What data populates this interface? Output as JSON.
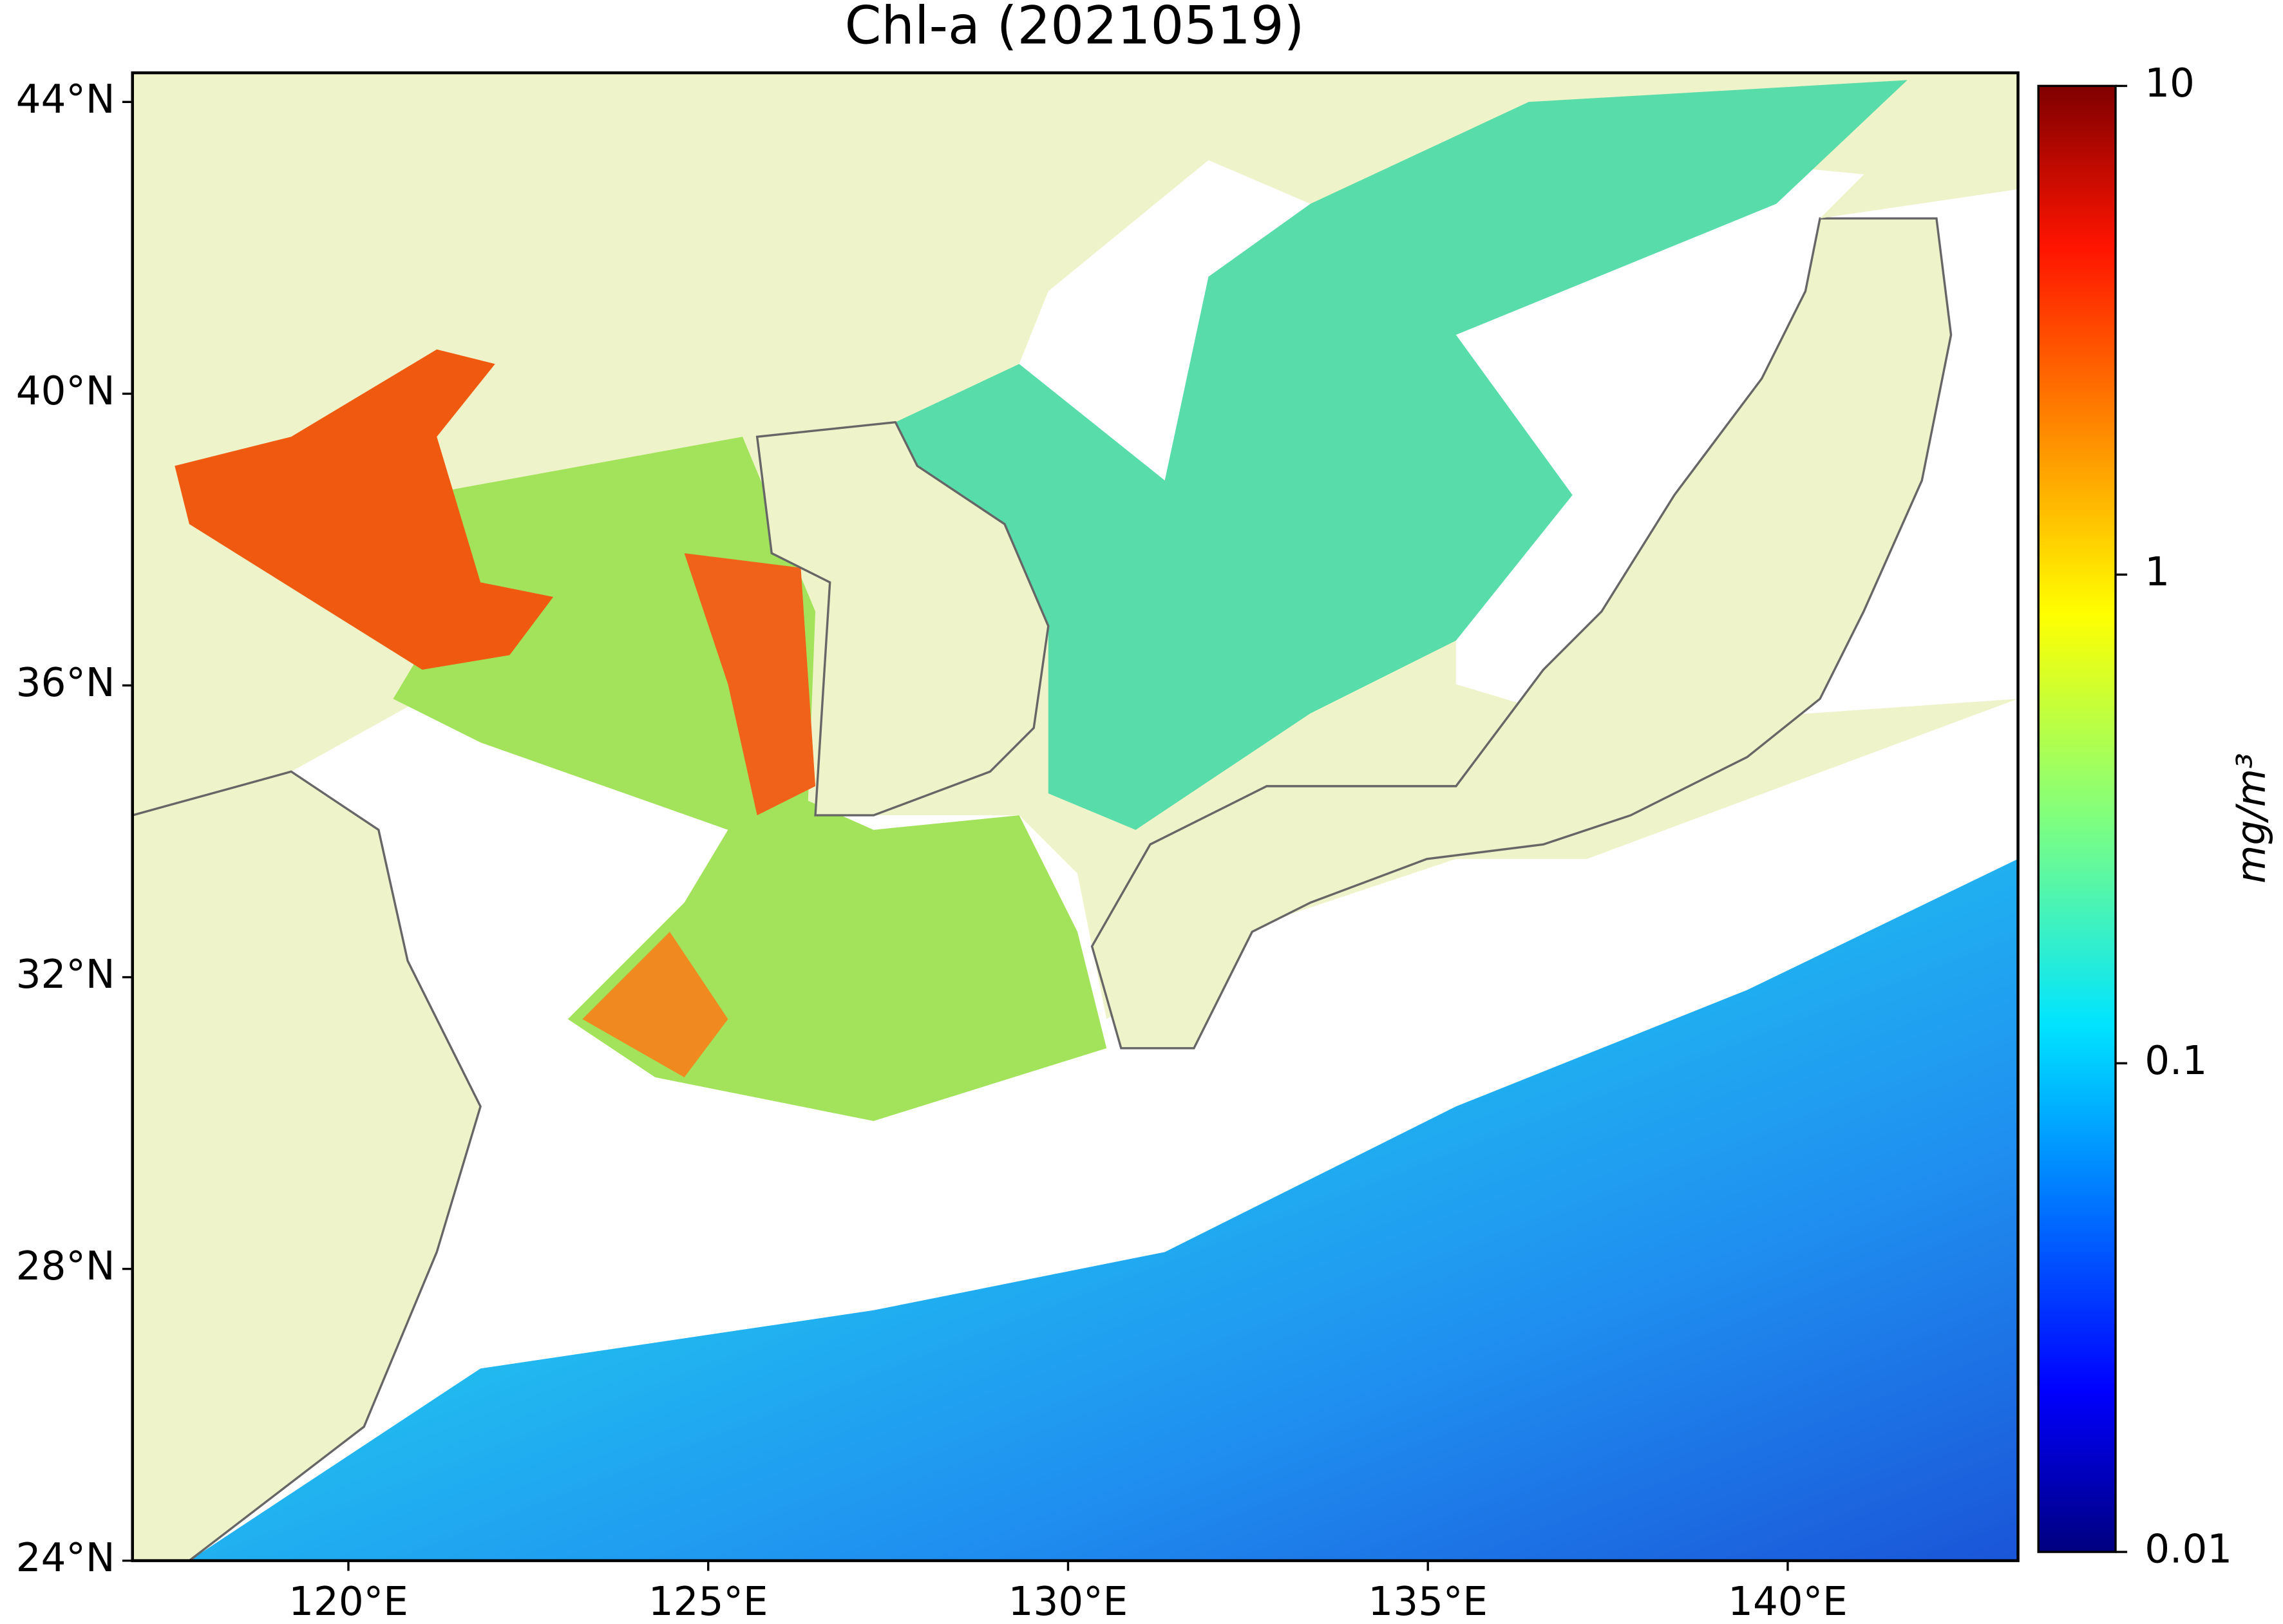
{
  "title": "Chl-a (20210519)",
  "map": {
    "lonlim": [
      117,
      143.2
    ],
    "latlim": [
      24,
      44.4
    ],
    "lon_ticks": [
      {
        "value": 120,
        "label": "120°E"
      },
      {
        "value": 125,
        "label": "125°E"
      },
      {
        "value": 130,
        "label": "130°E"
      },
      {
        "value": 135,
        "label": "135°E"
      },
      {
        "value": 140,
        "label": "140°E"
      }
    ],
    "lat_ticks": [
      {
        "value": 24,
        "label": "24°N"
      },
      {
        "value": 28,
        "label": "28°N"
      },
      {
        "value": 32,
        "label": "32°N"
      },
      {
        "value": 36,
        "label": "36°N"
      },
      {
        "value": 40,
        "label": "40°N"
      },
      {
        "value": 44,
        "label": "44°N"
      }
    ]
  },
  "colorbar": {
    "label": "mg/m³",
    "scale": "log",
    "lim": [
      0.01,
      10
    ],
    "ticks": [
      0.01,
      0.1,
      1,
      10
    ]
  }
}
